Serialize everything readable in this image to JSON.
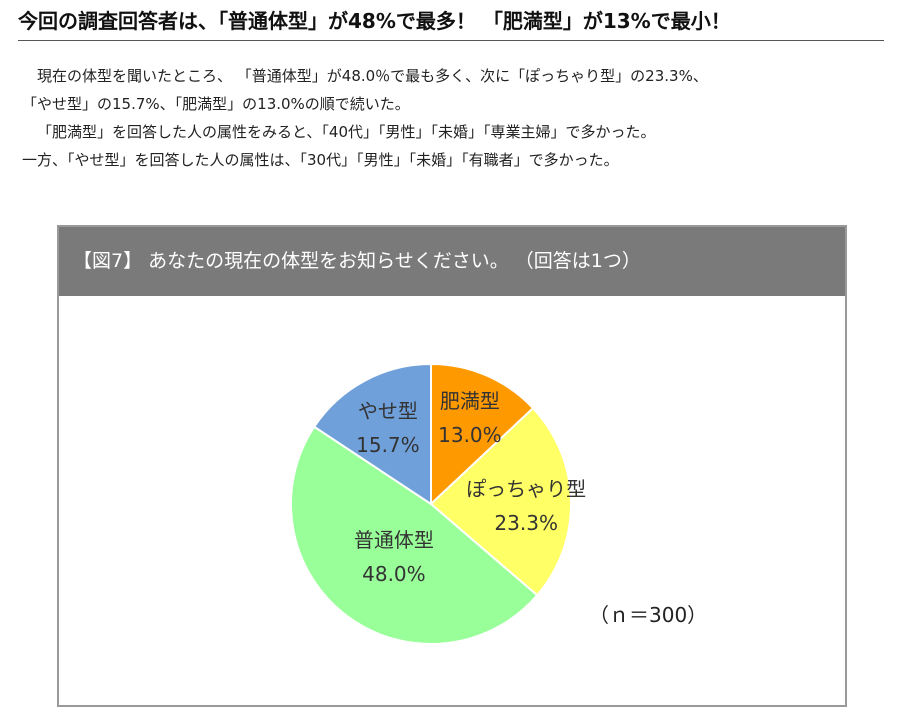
{
  "headline": "今回の調査回答者は、「普通体型」が48%で最多！ 「肥満型」が13%で最小！",
  "paragraphs": [
    "現在の体型を聞いたところ、 「普通体型」が48.0％で最も多く、次に「ぽっちゃり型」の23.3%、",
    "「やせ型」の15.7%、「肥満型」の13.0%の順で続いた。",
    "「肥満型」を回答した人の属性をみると、「40代」「男性」「未婚」「専業主婦」で多かった。",
    "一方、「やせ型」を回答した人の属性は、「30代」「男性」「未婚」「有職者」で多かった。"
  ],
  "figure": {
    "title": "【図7】 あなたの現在の体型をお知らせください。 （回答は1つ）",
    "sample_size": "（ｎ＝300）"
  },
  "chart_data": {
    "type": "pie",
    "start": "12 o'clock",
    "direction": "clockwise",
    "slices": [
      {
        "name": "肥満型",
        "value": 13.0,
        "label": "13.0%",
        "color": "#FF9900"
      },
      {
        "name": "ぽっちゃり型",
        "value": 23.3,
        "label": "23.3%",
        "color": "#FFFF66"
      },
      {
        "name": "普通体型",
        "value": 48.0,
        "label": "48.0%",
        "color": "#99FF99"
      },
      {
        "name": "やせ型",
        "value": 15.7,
        "label": "15.7%",
        "color": "#6FA0DA"
      }
    ]
  }
}
